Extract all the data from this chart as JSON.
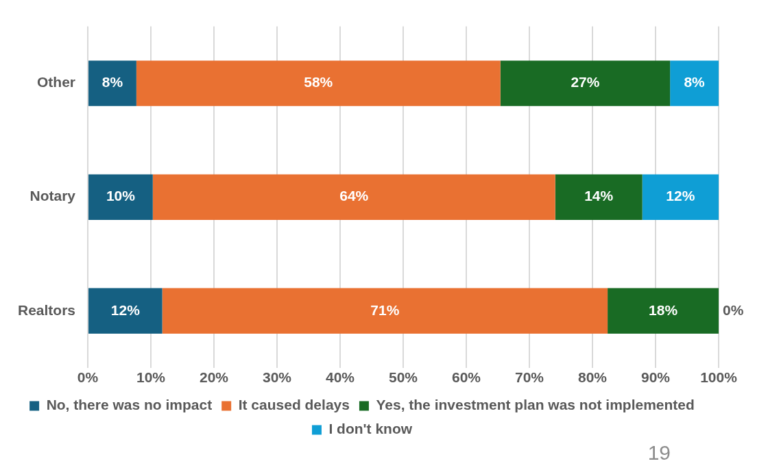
{
  "chart_data": {
    "type": "bar",
    "orientation": "horizontal",
    "stacked": true,
    "categories": [
      "Other",
      "Notary",
      "Realtors"
    ],
    "series": [
      {
        "name": "No, there was no impact",
        "color": "#156082",
        "values": [
          7.7,
          10.3,
          11.8
        ],
        "value_labels": [
          "8%",
          "10%",
          "12%"
        ]
      },
      {
        "name": "It caused delays",
        "color": "#e97132",
        "values": [
          57.7,
          63.8,
          70.6
        ],
        "value_labels": [
          "58%",
          "64%",
          "71%"
        ]
      },
      {
        "name": "Yes, the investment plan was not implemented",
        "color": "#196b24",
        "values": [
          26.9,
          13.8,
          17.6
        ],
        "value_labels": [
          "27%",
          "14%",
          "18%"
        ]
      },
      {
        "name": "I don't know",
        "color": "#0f9ed5",
        "values": [
          7.7,
          12.1,
          0
        ],
        "value_labels": [
          "8%",
          "12%",
          "0%"
        ]
      }
    ],
    "xlim": [
      0,
      100
    ],
    "xticks": [
      {
        "value": 0,
        "label": "0%"
      },
      {
        "value": 10,
        "label": "10%"
      },
      {
        "value": 20,
        "label": "20%"
      },
      {
        "value": 30,
        "label": "30%"
      },
      {
        "value": 40,
        "label": "40%"
      },
      {
        "value": 50,
        "label": "50%"
      },
      {
        "value": 60,
        "label": "60%"
      },
      {
        "value": 70,
        "label": "70%"
      },
      {
        "value": 80,
        "label": "80%"
      },
      {
        "value": 90,
        "label": "90%"
      },
      {
        "value": 100,
        "label": "100%"
      }
    ],
    "grid": "x",
    "legend": "bottom",
    "annotations": [
      "19"
    ]
  }
}
